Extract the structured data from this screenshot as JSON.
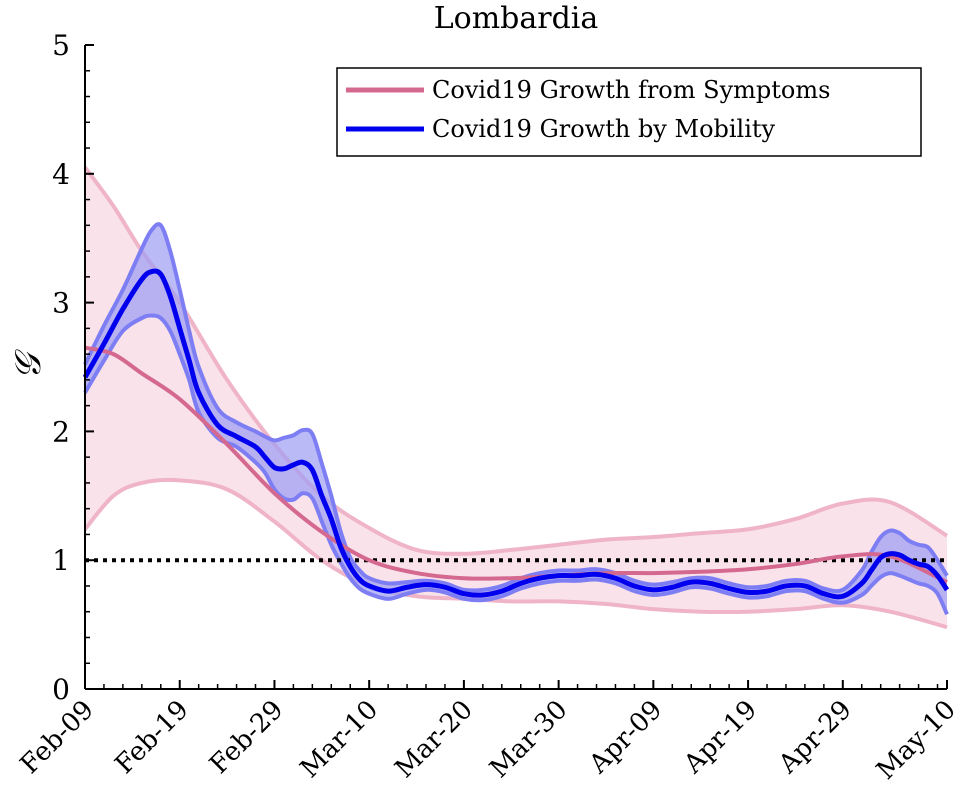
{
  "chart_data": {
    "type": "line",
    "title": "Lombardia",
    "ylabel": "𝒢",
    "xlabel": "",
    "ylim": [
      0,
      5
    ],
    "xlim_days": [
      0,
      91
    ],
    "y_ticks": [
      "0",
      "1",
      "2",
      "3",
      "4",
      "5"
    ],
    "x_ticks": [
      {
        "day": 0,
        "label": "Feb-09"
      },
      {
        "day": 10,
        "label": "Feb-19"
      },
      {
        "day": 20,
        "label": "Feb-29"
      },
      {
        "day": 30,
        "label": "Mar-10"
      },
      {
        "day": 40,
        "label": "Mar-20"
      },
      {
        "day": 50,
        "label": "Mar-30"
      },
      {
        "day": 60,
        "label": "Apr-09"
      },
      {
        "day": 70,
        "label": "Apr-19"
      },
      {
        "day": 80,
        "label": "Apr-29"
      },
      {
        "day": 91,
        "label": "May-10"
      }
    ],
    "reference_line": {
      "y": 1,
      "style": "dotted",
      "color": "#000000"
    },
    "legend": {
      "position": "top-right",
      "entries": [
        {
          "label": "Covid19 Growth from Symptoms",
          "color": "#d4688f"
        },
        {
          "label": "Covid19 Growth by Mobility",
          "color": "#0000ee"
        }
      ]
    },
    "series": [
      {
        "name": "Covid19 Growth from Symptoms",
        "color": "#d4688f",
        "band_fill": "#f8dde6",
        "band_edge": "#f0b4c8",
        "x": [
          0,
          3,
          6,
          10,
          15,
          20,
          25,
          30,
          35,
          40,
          45,
          50,
          55,
          60,
          65,
          70,
          75,
          80,
          85,
          91
        ],
        "y": [
          2.65,
          2.6,
          2.45,
          2.25,
          1.9,
          1.52,
          1.22,
          1.0,
          0.9,
          0.86,
          0.86,
          0.88,
          0.9,
          0.9,
          0.91,
          0.93,
          0.97,
          1.03,
          1.03,
          0.83
        ],
        "upper": [
          4.05,
          3.75,
          3.4,
          3.0,
          2.4,
          1.9,
          1.5,
          1.25,
          1.08,
          1.05,
          1.08,
          1.12,
          1.16,
          1.18,
          1.21,
          1.24,
          1.32,
          1.44,
          1.45,
          1.19
        ],
        "lower": [
          1.24,
          1.5,
          1.6,
          1.62,
          1.55,
          1.3,
          1.0,
          0.8,
          0.72,
          0.7,
          0.68,
          0.68,
          0.66,
          0.62,
          0.6,
          0.6,
          0.62,
          0.65,
          0.6,
          0.48
        ]
      },
      {
        "name": "Covid19 Growth by Mobility",
        "color": "#0000ee",
        "band_fill": "#9c9cf4",
        "band_edge": "#7e7ef4",
        "x": [
          0,
          2,
          4,
          6,
          7,
          8,
          9,
          10,
          11,
          12,
          14,
          16,
          18,
          19,
          20,
          21,
          22,
          23,
          24,
          25,
          26,
          27,
          28,
          29,
          30,
          32,
          34,
          36,
          38,
          40,
          42,
          44,
          46,
          48,
          50,
          52,
          54,
          56,
          58,
          60,
          62,
          64,
          66,
          68,
          70,
          72,
          74,
          76,
          78,
          80,
          82,
          83,
          84,
          85,
          86,
          87,
          88,
          89,
          90,
          91
        ],
        "y": [
          2.42,
          2.68,
          2.95,
          3.18,
          3.24,
          3.22,
          3.05,
          2.8,
          2.55,
          2.3,
          2.05,
          1.96,
          1.88,
          1.8,
          1.72,
          1.71,
          1.74,
          1.76,
          1.7,
          1.5,
          1.32,
          1.1,
          0.95,
          0.85,
          0.8,
          0.76,
          0.79,
          0.81,
          0.79,
          0.74,
          0.73,
          0.76,
          0.82,
          0.86,
          0.88,
          0.88,
          0.89,
          0.86,
          0.8,
          0.77,
          0.79,
          0.83,
          0.82,
          0.78,
          0.75,
          0.76,
          0.8,
          0.8,
          0.74,
          0.72,
          0.82,
          0.92,
          1.02,
          1.05,
          1.04,
          1.0,
          0.97,
          0.95,
          0.88,
          0.77
        ],
        "upper": [
          2.52,
          2.82,
          3.1,
          3.42,
          3.56,
          3.6,
          3.4,
          3.1,
          2.78,
          2.5,
          2.18,
          2.07,
          2.0,
          1.96,
          1.93,
          1.95,
          1.97,
          2.01,
          1.98,
          1.75,
          1.5,
          1.22,
          1.02,
          0.92,
          0.86,
          0.82,
          0.83,
          0.84,
          0.82,
          0.77,
          0.77,
          0.8,
          0.86,
          0.9,
          0.92,
          0.92,
          0.93,
          0.9,
          0.84,
          0.81,
          0.83,
          0.86,
          0.86,
          0.82,
          0.79,
          0.8,
          0.84,
          0.84,
          0.78,
          0.77,
          0.92,
          1.06,
          1.18,
          1.23,
          1.21,
          1.15,
          1.12,
          1.1,
          1.0,
          0.88
        ],
        "lower": [
          2.3,
          2.55,
          2.78,
          2.88,
          2.9,
          2.88,
          2.78,
          2.6,
          2.4,
          2.15,
          1.95,
          1.88,
          1.76,
          1.68,
          1.55,
          1.48,
          1.47,
          1.52,
          1.48,
          1.3,
          1.12,
          0.98,
          0.86,
          0.78,
          0.74,
          0.7,
          0.74,
          0.77,
          0.75,
          0.7,
          0.69,
          0.72,
          0.78,
          0.82,
          0.84,
          0.84,
          0.85,
          0.82,
          0.76,
          0.73,
          0.75,
          0.79,
          0.78,
          0.74,
          0.71,
          0.72,
          0.76,
          0.76,
          0.7,
          0.67,
          0.73,
          0.8,
          0.87,
          0.9,
          0.88,
          0.85,
          0.82,
          0.8,
          0.74,
          0.58
        ]
      }
    ]
  }
}
